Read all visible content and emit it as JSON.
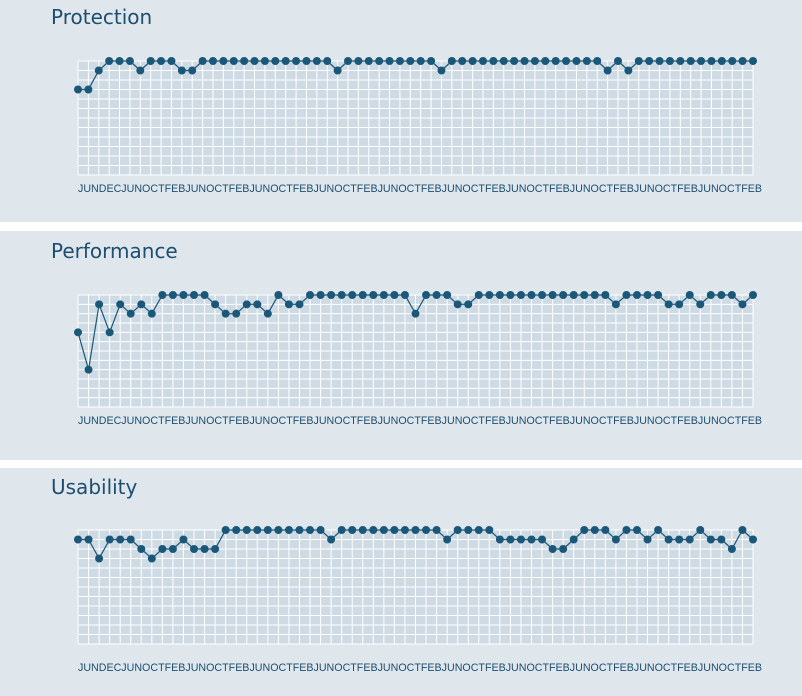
{
  "colors": {
    "panel_bg": "#dfe7ed",
    "plot_bg": "#cfdbe4",
    "grid": "#ffffff",
    "series": "#1a5778",
    "title": "#1d4e70"
  },
  "chart_data": [
    {
      "type": "line",
      "title": "Protection",
      "x_tick_labels": [
        "JUN",
        "DEC",
        "JUN",
        "OCT",
        "FEB",
        "JUN",
        "OCT",
        "FEB",
        "JUN",
        "OCT",
        "FEB",
        "JUN",
        "OCT",
        "FEB",
        "JUN",
        "OCT",
        "FEB",
        "JUN",
        "OCT",
        "FEB",
        "JUN",
        "OCT",
        "FEB",
        "JUN",
        "OCT",
        "FEB",
        "JUN",
        "OCT",
        "FEB",
        "JUN",
        "OCT",
        "FEB"
      ],
      "ylim": [
        0,
        6
      ],
      "grid": true,
      "values": [
        4.5,
        4.5,
        5.5,
        6,
        6,
        6,
        5.5,
        6,
        6,
        6,
        5.5,
        5.5,
        6,
        6,
        6,
        6,
        6,
        6,
        6,
        6,
        6,
        6,
        6,
        6,
        6,
        5.5,
        6,
        6,
        6,
        6,
        6,
        6,
        6,
        6,
        6,
        5.5,
        6,
        6,
        6,
        6,
        6,
        6,
        6,
        6,
        6,
        6,
        6,
        6,
        6,
        6,
        6,
        5.5,
        6,
        5.5,
        6,
        6,
        6,
        6,
        6,
        6,
        6,
        6,
        6,
        6,
        6,
        6
      ]
    },
    {
      "type": "line",
      "title": "Performance",
      "x_tick_labels": [
        "JUN",
        "DEC",
        "JUN",
        "OCT",
        "FEB",
        "JUN",
        "OCT",
        "FEB",
        "JUN",
        "OCT",
        "FEB",
        "JUN",
        "OCT",
        "FEB",
        "JUN",
        "OCT",
        "FEB",
        "JUN",
        "OCT",
        "FEB",
        "JUN",
        "OCT",
        "FEB",
        "JUN",
        "OCT",
        "FEB",
        "JUN",
        "OCT",
        "FEB",
        "JUN",
        "OCT",
        "FEB"
      ],
      "ylim": [
        0,
        6
      ],
      "grid": true,
      "values": [
        4,
        2,
        5.5,
        4,
        5.5,
        5,
        5.5,
        5,
        6,
        6,
        6,
        6,
        6,
        5.5,
        5,
        5,
        5.5,
        5.5,
        5,
        6,
        5.5,
        5.5,
        6,
        6,
        6,
        6,
        6,
        6,
        6,
        6,
        6,
        6,
        5,
        6,
        6,
        6,
        5.5,
        5.5,
        6,
        6,
        6,
        6,
        6,
        6,
        6,
        6,
        6,
        6,
        6,
        6,
        6,
        5.5,
        6,
        6,
        6,
        6,
        5.5,
        5.5,
        6,
        5.5,
        6,
        6,
        6,
        5.5,
        6
      ]
    },
    {
      "type": "line",
      "title": "Usability",
      "x_tick_labels": [
        "JUN",
        "DEC",
        "JUN",
        "OCT",
        "FEB",
        "JUN",
        "OCT",
        "FEB",
        "JUN",
        "OCT",
        "FEB",
        "JUN",
        "OCT",
        "FEB",
        "JUN",
        "OCT",
        "FEB",
        "JUN",
        "OCT",
        "FEB",
        "JUN",
        "OCT",
        "FEB",
        "JUN",
        "OCT",
        "FEB",
        "JUN",
        "OCT",
        "FEB",
        "JUN",
        "OCT",
        "FEB"
      ],
      "ylim": [
        0,
        6
      ],
      "grid": true,
      "values": [
        5.5,
        5.5,
        4.5,
        5.5,
        5.5,
        5.5,
        5,
        4.5,
        5,
        5,
        5.5,
        5,
        5,
        5,
        6,
        6,
        6,
        6,
        6,
        6,
        6,
        6,
        6,
        6,
        5.5,
        6,
        6,
        6,
        6,
        6,
        6,
        6,
        6,
        6,
        6,
        5.5,
        6,
        6,
        6,
        6,
        5.5,
        5.5,
        5.5,
        5.5,
        5.5,
        5,
        5,
        5.5,
        6,
        6,
        6,
        5.5,
        6,
        6,
        5.5,
        6,
        5.5,
        5.5,
        5.5,
        6,
        5.5,
        5.5,
        5,
        6,
        5.5
      ]
    }
  ]
}
